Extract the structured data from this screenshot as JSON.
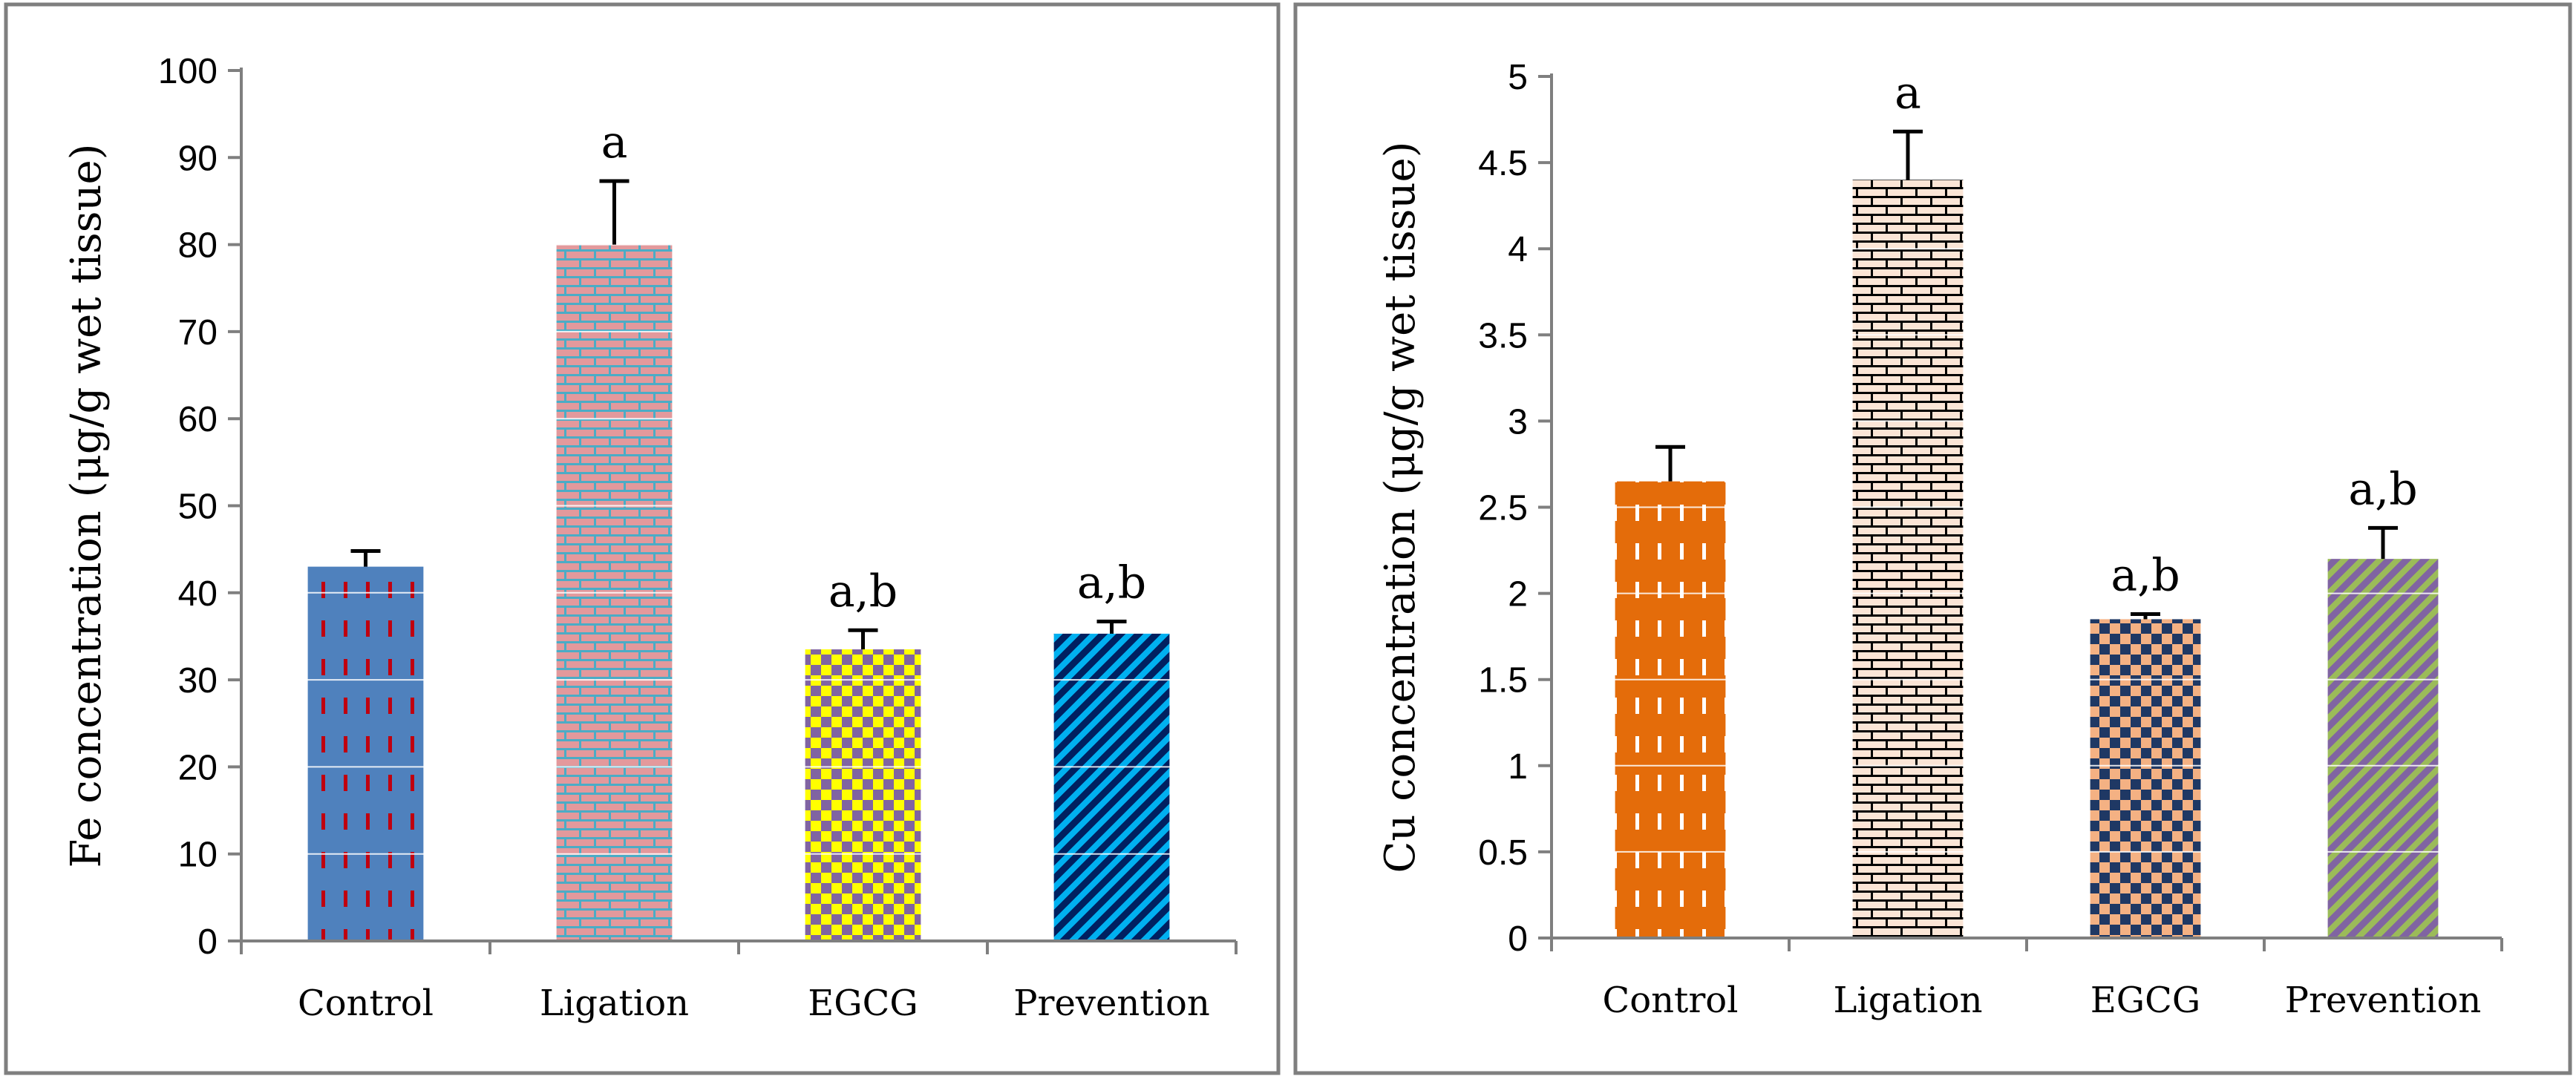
{
  "chart_data": [
    {
      "type": "bar",
      "ylabel": "Fe concentration (μg/g wet tissue)",
      "ylim": [
        0,
        100
      ],
      "yticks": [
        0,
        10,
        20,
        30,
        40,
        50,
        60,
        70,
        80,
        90,
        100
      ],
      "categories": [
        "Control",
        "Ligation",
        "EGCG",
        "Prevention"
      ],
      "values": [
        43,
        80,
        33.5,
        35.3
      ],
      "errors": [
        1.8,
        7.3,
        2.2,
        1.4
      ],
      "significance": [
        "",
        "a",
        "a,b",
        "a,b"
      ],
      "gridlines": true,
      "bar_styles": [
        {
          "pattern": "dashes",
          "bg": "#4f81bd",
          "fg": "#c0000f"
        },
        {
          "pattern": "brick",
          "bg": "#e3999c",
          "fg": "#4bacc6"
        },
        {
          "pattern": "checker",
          "bg": "#ffff00",
          "fg": "#8064a2"
        },
        {
          "pattern": "diagonal",
          "bg": "#002060",
          "fg": "#00b0f0"
        }
      ]
    },
    {
      "type": "bar",
      "ylabel": "Cu concentration (μg/g wet tissue)",
      "ylim": [
        0,
        5
      ],
      "yticks": [
        0,
        0.5,
        1,
        1.5,
        2,
        2.5,
        3,
        3.5,
        4,
        4.5,
        5
      ],
      "categories": [
        "Control",
        "Ligation",
        "EGCG",
        "Prevention"
      ],
      "values": [
        2.65,
        4.4,
        1.85,
        2.2
      ],
      "errors": [
        0.2,
        0.28,
        0.03,
        0.18
      ],
      "significance": [
        "",
        "a",
        "a,b",
        "a,b"
      ],
      "gridlines": true,
      "bar_styles": [
        {
          "pattern": "dashes",
          "bg": "#e46c0a",
          "fg": "#ffffff"
        },
        {
          "pattern": "brick",
          "bg": "#fbe5d6",
          "fg": "#000000"
        },
        {
          "pattern": "checker",
          "bg": "#f4b183",
          "fg": "#1f3864"
        },
        {
          "pattern": "diagonal",
          "bg": "#8064a2",
          "fg": "#9bbb59"
        }
      ]
    }
  ]
}
